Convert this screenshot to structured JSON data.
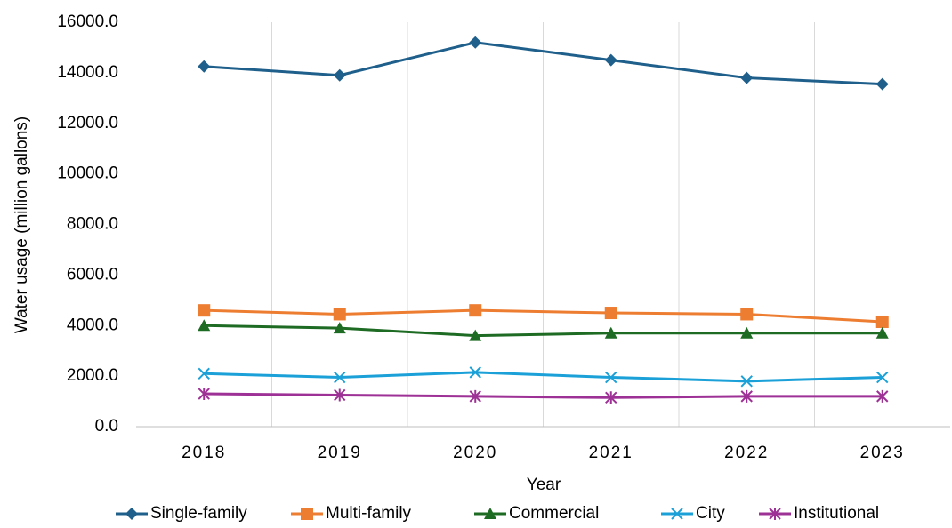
{
  "chart_data": {
    "type": "line",
    "x_label": "Year",
    "y_label": "Water usage (million gallons)",
    "categories": [
      "2018",
      "2019",
      "2020",
      "2021",
      "2022",
      "2023"
    ],
    "series": [
      {
        "name": "Single-family",
        "color": "#1f5f8b",
        "marker": "diamond",
        "values": [
          14250,
          13900,
          15200,
          14500,
          13800,
          13550
        ]
      },
      {
        "name": "Multi-family",
        "color": "#ed7d31",
        "marker": "square",
        "values": [
          4600,
          4450,
          4600,
          4500,
          4450,
          4150
        ]
      },
      {
        "name": "Commercial",
        "color": "#1e6b24",
        "marker": "triangle",
        "values": [
          4000,
          3900,
          3600,
          3700,
          3700,
          3700
        ]
      },
      {
        "name": "City",
        "color": "#1ba1d8",
        "marker": "x",
        "values": [
          2100,
          1950,
          2150,
          1950,
          1800,
          1950
        ]
      },
      {
        "name": "Institutional",
        "color": "#9e3196",
        "marker": "asterisk",
        "values": [
          1300,
          1250,
          1200,
          1150,
          1200,
          1200
        ]
      }
    ],
    "ylim": [
      0,
      16000
    ],
    "yticks": [
      {
        "value": 0,
        "label": "0.0"
      },
      {
        "value": 2000,
        "label": "2000.0"
      },
      {
        "value": 4000,
        "label": "4000.0"
      },
      {
        "value": 6000,
        "label": "6000.0"
      },
      {
        "value": 8000,
        "label": "8000.0"
      },
      {
        "value": 10000,
        "label": "10000.0"
      },
      {
        "value": 12000,
        "label": "12000.0"
      },
      {
        "value": 14000,
        "label": "14000.0"
      },
      {
        "value": 16000,
        "label": "16000.0"
      }
    ],
    "vertical_grid": true,
    "legend": "bottom"
  }
}
